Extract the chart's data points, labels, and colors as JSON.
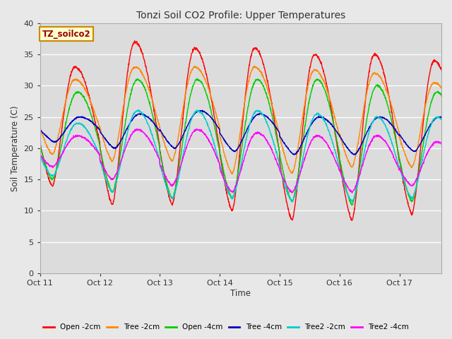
{
  "title": "Tonzi Soil CO2 Profile: Upper Temperatures",
  "xlabel": "Time",
  "ylabel": "Soil Temperature (C)",
  "ylim": [
    0,
    40
  ],
  "yticks": [
    0,
    5,
    10,
    15,
    20,
    25,
    30,
    35,
    40
  ],
  "fig_bg": "#e8e8e8",
  "plot_bg": "#dcdcdc",
  "grid_color": "#ffffff",
  "annotation_text": "TZ_soilco2",
  "annotation_bg": "#ffffcc",
  "annotation_border": "#cc8800",
  "annotation_color": "#990000",
  "series": [
    {
      "label": "Open -2cm",
      "color": "#ff0000"
    },
    {
      "label": "Tree -2cm",
      "color": "#ff8800"
    },
    {
      "label": "Open -4cm",
      "color": "#00cc00"
    },
    {
      "label": "Tree -4cm",
      "color": "#0000bb"
    },
    {
      "label": "Tree2 -2cm",
      "color": "#00cccc"
    },
    {
      "label": "Tree2 -4cm",
      "color": "#ff00ff"
    }
  ],
  "xtick_labels": [
    "Oct 11",
    "Oct 12",
    "Oct 13",
    "Oct 14",
    "Oct 15",
    "Oct 16",
    "Oct 17"
  ],
  "days": 7,
  "ppd": 288,
  "open2_peaks": [
    33,
    37,
    36,
    36,
    35,
    35,
    34
  ],
  "open2_troughs": [
    14,
    11,
    11,
    10,
    8.5,
    8.5,
    9.5
  ],
  "tree2_peaks": [
    31,
    33,
    33,
    33,
    32.5,
    32,
    30.5
  ],
  "tree2_troughs": [
    19,
    18,
    18,
    16,
    16,
    17,
    17
  ],
  "open4_peaks": [
    29,
    31,
    31,
    31,
    31,
    30,
    29
  ],
  "open4_troughs": [
    15,
    13,
    12,
    12,
    11.5,
    11,
    11.5
  ],
  "tree4_peaks": [
    25,
    25.5,
    26,
    25.5,
    25,
    25,
    25
  ],
  "tree4_troughs": [
    21,
    20,
    20,
    19.5,
    19,
    19,
    19.5
  ],
  "tree22_peaks": [
    24,
    26,
    26,
    26,
    25.5,
    25,
    25
  ],
  "tree22_troughs": [
    15.5,
    13,
    12,
    12,
    11.5,
    11.5,
    12
  ],
  "tree24_peaks": [
    22,
    23,
    23,
    22.5,
    22,
    22,
    21
  ],
  "tree24_troughs": [
    17,
    15,
    14,
    13,
    13,
    13,
    14
  ],
  "peak_hour": 14,
  "trough_hour": 5
}
